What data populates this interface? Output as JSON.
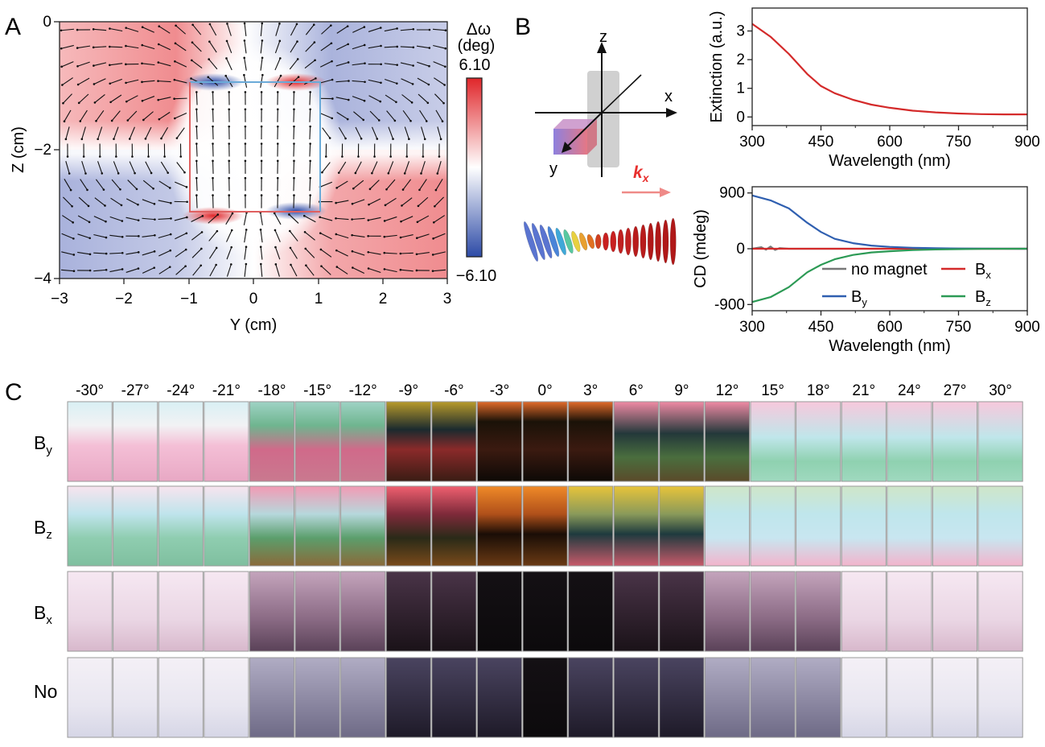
{
  "panel_a": {
    "label": "A",
    "colorbar_title_line1": "Δω",
    "colorbar_title_line2": "(deg)",
    "colorbar_max": "6.10",
    "colorbar_min": "−6.10",
    "xlabel": "Y (cm)",
    "ylabel": "Z (cm)",
    "xticks": [
      "−3",
      "−2",
      "−1",
      "0",
      "1",
      "2",
      "3"
    ],
    "yticks": [
      "0",
      "−2",
      "−4"
    ],
    "colors": {
      "pos": "#e0262a",
      "neg": "#2c4aa6",
      "mid": "#ffffff"
    }
  },
  "panel_b": {
    "label": "B",
    "axis_x": "x",
    "axis_y": "y",
    "axis_z": "z",
    "wavevector": "k",
    "wavevector_sub": "x",
    "arrow_color": "#e8302e"
  },
  "chart_data": [
    {
      "type": "line",
      "title": "",
      "xlabel": "Wavelength (nm)",
      "ylabel": "Extinction (a.u.)",
      "xlim": [
        300,
        900
      ],
      "ylim": [
        -0.3,
        3.8
      ],
      "xticks": [
        "300",
        "450",
        "600",
        "750",
        "900"
      ],
      "yticks": [
        "0",
        "1",
        "2",
        "3"
      ],
      "series": [
        {
          "name": "Extinction",
          "color": "#d42a2a",
          "x": [
            300,
            340,
            380,
            420,
            450,
            480,
            520,
            560,
            600,
            650,
            700,
            750,
            800,
            850,
            900
          ],
          "y": [
            3.25,
            2.8,
            2.2,
            1.5,
            1.08,
            0.83,
            0.6,
            0.43,
            0.32,
            0.22,
            0.16,
            0.12,
            0.1,
            0.09,
            0.09
          ]
        }
      ]
    },
    {
      "type": "line",
      "title": "",
      "xlabel": "Wavelength (nm)",
      "ylabel": "CD (mdeg)",
      "xlim": [
        300,
        900
      ],
      "ylim": [
        -1000,
        1000
      ],
      "xticks": [
        "300",
        "450",
        "600",
        "750",
        "900"
      ],
      "yticks": [
        "900",
        "0",
        "-900"
      ],
      "legend": [
        "no magnet",
        "B",
        "B",
        "B"
      ],
      "series": [
        {
          "name": "no magnet",
          "label": "no magnet",
          "sub": "",
          "color": "#777777",
          "x": [
            300,
            320,
            330,
            340,
            350,
            360,
            380,
            450,
            600,
            750,
            900
          ],
          "y": [
            0,
            25,
            -15,
            35,
            -20,
            10,
            0,
            0,
            0,
            0,
            0
          ]
        },
        {
          "name": "Bx",
          "label": "B",
          "sub": "x",
          "color": "#d42a2a",
          "x": [
            300,
            450,
            600,
            750,
            900
          ],
          "y": [
            0,
            0,
            0,
            0,
            0
          ]
        },
        {
          "name": "By",
          "label": "B",
          "sub": "y",
          "color": "#2f5fb0",
          "x": [
            300,
            340,
            380,
            420,
            450,
            480,
            520,
            560,
            600,
            650,
            700,
            750,
            800,
            900
          ],
          "y": [
            860,
            780,
            650,
            420,
            270,
            160,
            90,
            50,
            30,
            15,
            8,
            4,
            2,
            0
          ]
        },
        {
          "name": "Bz",
          "label": "B",
          "sub": "z",
          "color": "#2c9a55",
          "x": [
            300,
            340,
            380,
            420,
            450,
            480,
            520,
            560,
            600,
            650,
            700,
            750,
            800,
            900
          ],
          "y": [
            -860,
            -780,
            -620,
            -380,
            -260,
            -170,
            -100,
            -60,
            -40,
            -22,
            -12,
            -6,
            -3,
            0
          ]
        }
      ]
    }
  ],
  "panel_c": {
    "label": "C",
    "angles": [
      "-30°",
      "-27°",
      "-24°",
      "-21°",
      "-18°",
      "-15°",
      "-12°",
      "-9°",
      "-6°",
      "-3°",
      "0°",
      "3°",
      "6°",
      "9°",
      "12°",
      "15°",
      "18°",
      "21°",
      "24°",
      "27°",
      "30°"
    ],
    "rows": [
      {
        "label": "B",
        "sub": "y"
      },
      {
        "label": "B",
        "sub": "z"
      },
      {
        "label": "B",
        "sub": "x"
      },
      {
        "label": "No",
        "sub": ""
      }
    ]
  }
}
